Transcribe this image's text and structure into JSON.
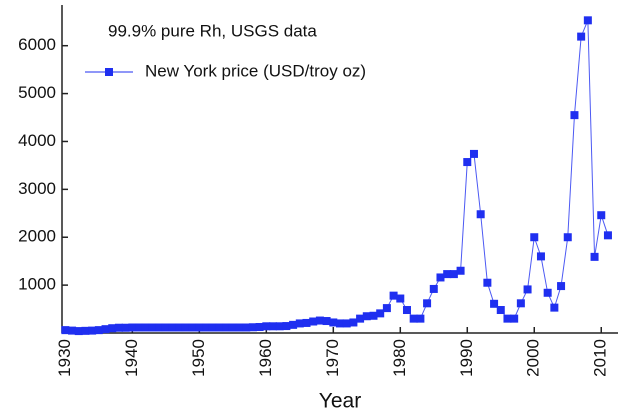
{
  "chart_data": {
    "type": "line",
    "title": "99.9% pure Rh, USGS data",
    "x_label": "Year",
    "x": [
      1930,
      1931,
      1932,
      1933,
      1934,
      1935,
      1936,
      1937,
      1938,
      1939,
      1940,
      1941,
      1942,
      1943,
      1944,
      1945,
      1946,
      1947,
      1948,
      1949,
      1950,
      1951,
      1952,
      1953,
      1954,
      1955,
      1956,
      1957,
      1958,
      1959,
      1960,
      1961,
      1962,
      1963,
      1964,
      1965,
      1966,
      1967,
      1968,
      1969,
      1970,
      1971,
      1972,
      1973,
      1974,
      1975,
      1976,
      1977,
      1978,
      1979,
      1980,
      1981,
      1982,
      1983,
      1984,
      1985,
      1986,
      1987,
      1988,
      1989,
      1990,
      1991,
      1992,
      1993,
      1994,
      1995,
      1996,
      1997,
      1998,
      1999,
      2000,
      2001,
      2002,
      2003,
      2004,
      2005,
      2006,
      2007,
      2008,
      2009,
      2010,
      2011
    ],
    "series": [
      {
        "name": "New York price (USD/troy oz)",
        "color": "#1f2ff0",
        "values": [
          60,
          50,
          40,
          45,
          50,
          60,
          80,
          100,
          110,
          110,
          115,
          115,
          115,
          115,
          115,
          115,
          115,
          115,
          115,
          115,
          115,
          115,
          115,
          115,
          115,
          115,
          115,
          115,
          120,
          125,
          140,
          140,
          140,
          145,
          170,
          200,
          210,
          240,
          260,
          250,
          220,
          200,
          200,
          220,
          300,
          350,
          360,
          410,
          520,
          780,
          720,
          480,
          300,
          300,
          620,
          920,
          1160,
          1230,
          1230,
          1300,
          3570,
          3740,
          2480,
          1050,
          610,
          480,
          300,
          300,
          620,
          910,
          2000,
          1600,
          840,
          530,
          980,
          2000,
          4550,
          6190,
          6530,
          1590,
          2460,
          2040
        ]
      }
    ],
    "xlim": [
      1929.5,
      2012.5
    ],
    "xticks": [
      1930,
      1940,
      1950,
      1960,
      1970,
      1980,
      1990,
      2000,
      2010
    ],
    "ylim": [
      0,
      6850
    ],
    "yticks": [
      1000,
      2000,
      3000,
      4000,
      5000,
      6000
    ],
    "grid": false
  }
}
